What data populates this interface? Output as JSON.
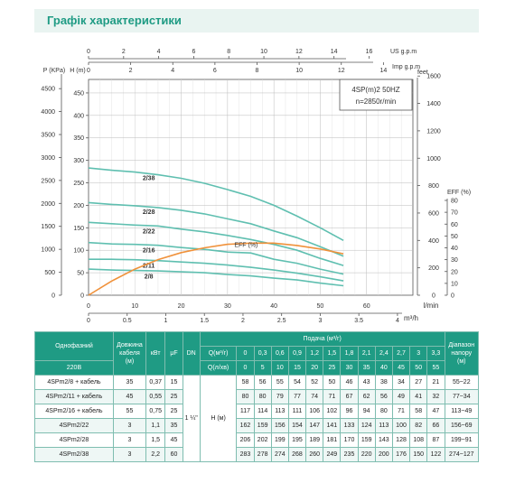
{
  "page": {
    "title": "Графік характеристики"
  },
  "chart_data": {
    "type": "line",
    "model_label": "4SP(m)2  50HZ",
    "speed_label": "n=2850r/min",
    "x_primary": {
      "unit": "l/min",
      "range": [
        0,
        70
      ],
      "ticks": [
        0,
        10,
        20,
        30,
        40,
        50,
        60
      ]
    },
    "x_m3h": {
      "unit": "m³/h",
      "range": [
        0,
        4.2
      ],
      "ticks": [
        "0",
        "0.5",
        "1",
        "1.5",
        "2",
        "2.5",
        "3",
        "3.5",
        "4"
      ]
    },
    "x_us": {
      "unit": "US g.p.m",
      "range": [
        0,
        18.5
      ],
      "ticks": [
        0,
        2,
        4,
        6,
        8,
        10,
        12,
        14,
        16
      ]
    },
    "x_imp": {
      "unit": "Imp g.p.m",
      "range": [
        0,
        15.4
      ],
      "ticks": [
        0,
        2,
        4,
        6,
        8,
        10,
        12,
        14
      ]
    },
    "y_head": {
      "unit": "H (m)",
      "range": [
        0,
        480
      ],
      "ticks": [
        0,
        50,
        100,
        150,
        200,
        250,
        300,
        350,
        400,
        450
      ]
    },
    "y_pressure": {
      "unit": "P (KPa)",
      "range": [
        0,
        4700
      ],
      "ticks": [
        0,
        500,
        1000,
        1500,
        2000,
        2500,
        3000,
        3500,
        4000,
        4500
      ]
    },
    "y_feet": {
      "unit": "feet",
      "range": [
        0,
        1575
      ],
      "ticks": [
        0,
        200,
        400,
        600,
        800,
        1000,
        1200,
        1400,
        1600
      ]
    },
    "y_eff": {
      "unit": "EFF (%)",
      "range": [
        0,
        80
      ],
      "ticks": [
        0,
        10,
        20,
        30,
        40,
        50,
        60,
        70,
        80
      ]
    },
    "series": [
      {
        "name": "2/38",
        "x": [
          0,
          5,
          10,
          15,
          20,
          25,
          30,
          35,
          40,
          45,
          50,
          55
        ],
        "y": [
          283,
          278,
          274,
          268,
          260,
          249,
          235,
          220,
          200,
          176,
          150,
          122
        ]
      },
      {
        "name": "2/28",
        "x": [
          0,
          5,
          10,
          15,
          20,
          25,
          30,
          35,
          40,
          45,
          50,
          55
        ],
        "y": [
          206,
          202,
          199,
          195,
          189,
          181,
          170,
          159,
          143,
          128,
          108,
          87
        ]
      },
      {
        "name": "2/22",
        "x": [
          0,
          5,
          10,
          15,
          20,
          25,
          30,
          35,
          40,
          45,
          50,
          55
        ],
        "y": [
          162,
          159,
          156,
          154,
          147,
          141,
          133,
          124,
          113,
          100,
          82,
          66
        ]
      },
      {
        "name": "2/16",
        "x": [
          0,
          5,
          10,
          15,
          20,
          25,
          30,
          35,
          40,
          45,
          50,
          55
        ],
        "y": [
          117,
          114,
          113,
          111,
          106,
          102,
          96,
          94,
          80,
          71,
          58,
          47
        ]
      },
      {
        "name": "2/11",
        "x": [
          0,
          5,
          10,
          15,
          20,
          25,
          30,
          35,
          40,
          45,
          50,
          55
        ],
        "y": [
          80,
          80,
          79,
          77,
          74,
          71,
          67,
          62,
          56,
          49,
          41,
          32
        ]
      },
      {
        "name": "2/8",
        "x": [
          0,
          5,
          10,
          15,
          20,
          25,
          30,
          35,
          40,
          45,
          50,
          55
        ],
        "y": [
          58,
          56,
          55,
          54,
          52,
          50,
          46,
          43,
          38,
          34,
          27,
          21
        ]
      }
    ],
    "efficiency": {
      "name": "EFF (%)",
      "x": [
        0,
        5,
        10,
        15,
        20,
        25,
        30,
        35,
        40,
        45,
        50,
        55
      ],
      "y": [
        0,
        12,
        22,
        30,
        36,
        40,
        43,
        44,
        44,
        42,
        39,
        35
      ]
    },
    "colors": {
      "head": "#5fbfb0",
      "efficiency": "#f0913a",
      "grid": "#bbbbbb"
    }
  },
  "table": {
    "header": {
      "single_phase": "Однофазний",
      "voltage": "220В",
      "cable_length": [
        "Довжина",
        "кабеля",
        "(м)"
      ],
      "kw": "кВт",
      "uf": "μF",
      "dn": "DN",
      "flow_title": "Подача (м³/г)",
      "q_m3h_label": "Q(м³/г)",
      "q_lmin_label": "Q(л/хв)",
      "q_m3h": [
        "0",
        "0,3",
        "0,6",
        "0,9",
        "1,2",
        "1,5",
        "1,8",
        "2,1",
        "2,4",
        "2,7",
        "3",
        "3,3"
      ],
      "q_lmin": [
        "0",
        "5",
        "10",
        "15",
        "20",
        "25",
        "30",
        "35",
        "40",
        "45",
        "50",
        "55"
      ],
      "range": [
        "Діапазон",
        "напору",
        "(м)"
      ],
      "dn_value": "1 ¼\"",
      "h_label": "H (м)"
    },
    "rows": [
      {
        "model": "4SPm2/8 + кабель",
        "cable": "35",
        "kw": "0,37",
        "uf": "15",
        "h": [
          "58",
          "56",
          "55",
          "54",
          "52",
          "50",
          "46",
          "43",
          "38",
          "34",
          "27",
          "21"
        ],
        "range": "55~22"
      },
      {
        "model": "4SPm2/11 + кабель",
        "cable": "45",
        "kw": "0,55",
        "uf": "25",
        "h": [
          "80",
          "80",
          "79",
          "77",
          "74",
          "71",
          "67",
          "62",
          "56",
          "49",
          "41",
          "32"
        ],
        "range": "77~34"
      },
      {
        "model": "4SPm2/16 + кабель",
        "cable": "55",
        "kw": "0,75",
        "uf": "25",
        "h": [
          "117",
          "114",
          "113",
          "111",
          "106",
          "102",
          "96",
          "94",
          "80",
          "71",
          "58",
          "47"
        ],
        "range": "113~49"
      },
      {
        "model": "4SPm2/22",
        "cable": "3",
        "kw": "1,1",
        "uf": "35",
        "h": [
          "162",
          "159",
          "156",
          "154",
          "147",
          "141",
          "133",
          "124",
          "113",
          "100",
          "82",
          "66"
        ],
        "range": "156~69"
      },
      {
        "model": "4SPm2/28",
        "cable": "3",
        "kw": "1,5",
        "uf": "45",
        "h": [
          "206",
          "202",
          "199",
          "195",
          "189",
          "181",
          "170",
          "159",
          "143",
          "128",
          "108",
          "87"
        ],
        "range": "199~91"
      },
      {
        "model": "4SPm2/38",
        "cable": "3",
        "kw": "2,2",
        "uf": "60",
        "h": [
          "283",
          "278",
          "274",
          "268",
          "260",
          "249",
          "235",
          "220",
          "200",
          "176",
          "150",
          "122"
        ],
        "range": "274~127"
      }
    ]
  }
}
